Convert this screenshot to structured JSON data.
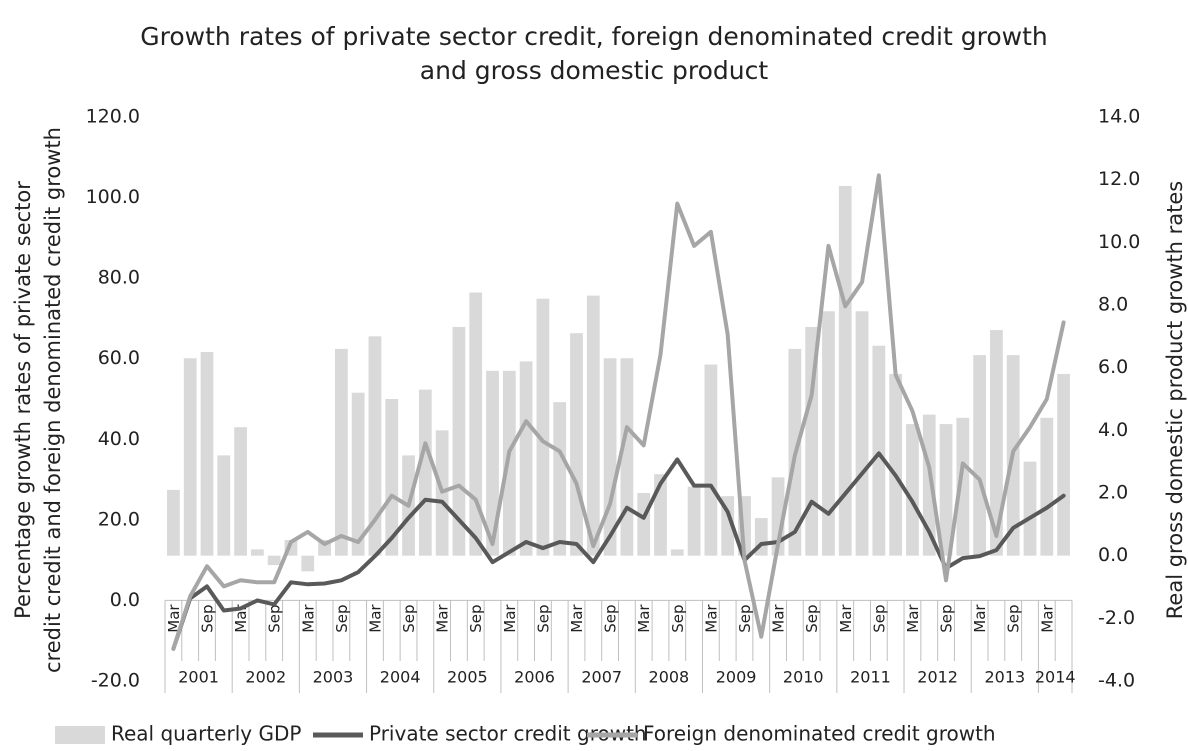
{
  "chart_data": {
    "type": "combo",
    "title": "Growth rates of private sector credit, foreign denominated credit growth",
    "title_line2": "and gross domestic product",
    "ylabel": "Percentage growth rates of private sector",
    "ylabel_line2": "credit credit and foreign denominated credit growth",
    "y2label": "Real gross domestic product growth rates",
    "categories": [
      "Mar",
      null,
      "Sep",
      null,
      "Mar",
      null,
      "Sep",
      null,
      "Mar",
      null,
      "Sep",
      null,
      "Mar",
      null,
      "Sep",
      null,
      "Mar",
      null,
      "Sep",
      null,
      "Mar",
      null,
      "Sep",
      null,
      "Mar",
      null,
      "Sep",
      null,
      "Mar",
      null,
      "Sep",
      null,
      "Mar",
      null,
      "Sep",
      null,
      "Mar",
      null,
      "Sep",
      null,
      "Mar",
      null,
      "Sep",
      null,
      "Mar",
      null,
      "Sep",
      null,
      "Mar",
      null,
      "Sep",
      null,
      "Mar",
      null
    ],
    "x_groups": [
      "2001",
      "2002",
      "2003",
      "2004",
      "2005",
      "2006",
      "2007",
      "2008",
      "2009",
      "2010",
      "2011",
      "2012",
      "2013",
      "2014"
    ],
    "ylim": [
      -20,
      120
    ],
    "yticks": [
      {
        "value": -20,
        "label": "-20.0"
      },
      {
        "value": 0,
        "label": "0.0"
      },
      {
        "value": 20,
        "label": "20.0"
      },
      {
        "value": 40,
        "label": "40.0"
      },
      {
        "value": 60,
        "label": "60.0"
      },
      {
        "value": 80,
        "label": "80.0"
      },
      {
        "value": 100,
        "label": "100.0"
      },
      {
        "value": 120,
        "label": "120.0"
      }
    ],
    "y2lim": [
      -4,
      14
    ],
    "y2ticks": [
      {
        "value": -4,
        "label": "-4.0"
      },
      {
        "value": -2,
        "label": "-2.0"
      },
      {
        "value": 0,
        "label": "0.0"
      },
      {
        "value": 2,
        "label": "2.0"
      },
      {
        "value": 4,
        "label": "4.0"
      },
      {
        "value": 6,
        "label": "6.0"
      },
      {
        "value": 8,
        "label": "8.0"
      },
      {
        "value": 10,
        "label": "10.0"
      },
      {
        "value": 12,
        "label": "12.0"
      },
      {
        "value": 14,
        "label": "14.0"
      }
    ],
    "grid": false,
    "legend": "bottom",
    "series": [
      {
        "name": "Real quarterly GDP",
        "type": "bar",
        "axis": "y2",
        "color": "#d9d9d9",
        "values": [
          2.1,
          6.3,
          6.5,
          3.2,
          4.1,
          0.2,
          -0.3,
          0.5,
          -0.5,
          0.5,
          6.6,
          5.2,
          7.0,
          5.0,
          3.2,
          5.3,
          4.0,
          7.3,
          8.4,
          5.9,
          5.9,
          6.2,
          8.2,
          4.9,
          7.1,
          8.3,
          6.3,
          6.3,
          2.0,
          2.6,
          0.2,
          2.2,
          6.1,
          1.9,
          1.9,
          1.2,
          2.5,
          6.6,
          7.3,
          7.8,
          11.8,
          7.8,
          6.7,
          5.8,
          4.2,
          4.5,
          4.2,
          4.4,
          6.4,
          7.2,
          6.4,
          3.0,
          4.4,
          5.8
        ]
      },
      {
        "name": "Private sector credit growth",
        "type": "line",
        "color": "#595959",
        "values": [
          -12,
          0.5,
          3.5,
          -2.5,
          -2,
          0,
          -1,
          4.5,
          4,
          4.2,
          5,
          7,
          11,
          15.5,
          20.5,
          25,
          24.5,
          20,
          15.5,
          9.5,
          12,
          14.5,
          13,
          14.5,
          14,
          9.5,
          16,
          23,
          20.5,
          29,
          35,
          28.5,
          28.5,
          22,
          10,
          14,
          14.5,
          17,
          24.5,
          21.5,
          26.5,
          31.5,
          36.5,
          31,
          24.5,
          17,
          8,
          10.5,
          11,
          12.5,
          18,
          20.5,
          23,
          26
        ]
      },
      {
        "name": "Foreign denominated credit growth",
        "type": "line",
        "color": "#a6a6a6",
        "values": [
          -12,
          1,
          8.5,
          3.5,
          5,
          4.5,
          4.5,
          14.5,
          17,
          14,
          16,
          14.5,
          20,
          26,
          23.5,
          39,
          27,
          28.5,
          25,
          14,
          37,
          44.5,
          39.5,
          37,
          29,
          13.5,
          24,
          43,
          38.5,
          61,
          98.5,
          88,
          91.5,
          66,
          10,
          -9,
          14,
          36,
          51,
          88,
          73,
          79,
          105.5,
          56,
          47,
          33,
          5,
          34,
          30,
          16,
          37,
          43,
          50,
          69
        ]
      }
    ]
  }
}
